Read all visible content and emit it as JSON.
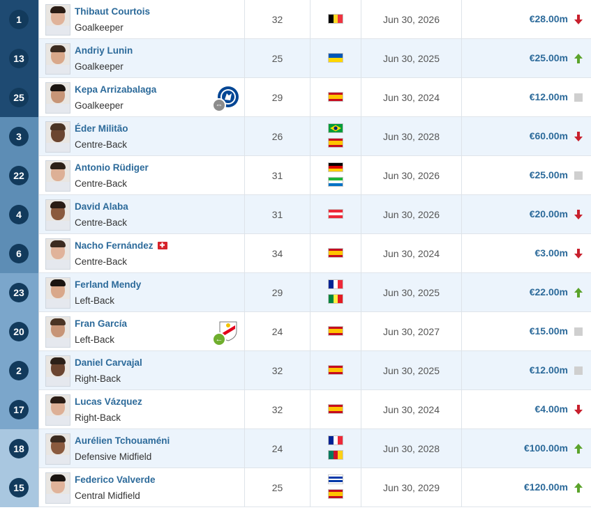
{
  "players": [
    {
      "number": "1",
      "name": "Thibaut Courtois",
      "position": "Goalkeeper",
      "age": "32",
      "flags": [
        "belgium-flag"
      ],
      "contract": "Jun 30, 2026",
      "value": "€28.00m",
      "trend": "down",
      "club_icon": null
    },
    {
      "number": "13",
      "name": "Andriy Lunin",
      "position": "Goalkeeper",
      "age": "25",
      "flags": [
        "ukraine-flag"
      ],
      "contract": "Jun 30, 2025",
      "value": "€25.00m",
      "trend": "up",
      "club_icon": null
    },
    {
      "number": "25",
      "name": "Kepa Arrizabalaga",
      "position": "Goalkeeper",
      "age": "29",
      "flags": [
        "spain-flag"
      ],
      "contract": "Jun 30, 2024",
      "value": "€12.00m",
      "trend": "none",
      "club_icon": "chelsea-crest-icon",
      "transfer_icon": "loan-swap-icon"
    },
    {
      "number": "3",
      "name": "Éder Militão",
      "position": "Centre-Back",
      "age": "26",
      "flags": [
        "brazil-flag",
        "spain-flag"
      ],
      "contract": "Jun 30, 2028",
      "value": "€60.00m",
      "trend": "down",
      "club_icon": null
    },
    {
      "number": "22",
      "name": "Antonio Rüdiger",
      "position": "Centre-Back",
      "age": "31",
      "flags": [
        "germany-flag",
        "sierra-leone-flag"
      ],
      "contract": "Jun 30, 2026",
      "value": "€25.00m",
      "trend": "none",
      "club_icon": null
    },
    {
      "number": "4",
      "name": "David Alaba",
      "position": "Centre-Back",
      "age": "31",
      "flags": [
        "austria-flag"
      ],
      "contract": "Jun 30, 2026",
      "value": "€20.00m",
      "trend": "down",
      "club_icon": null
    },
    {
      "number": "6",
      "name": "Nacho Fernández",
      "position": "Centre-Back",
      "age": "34",
      "flags": [
        "spain-flag"
      ],
      "contract": "Jun 30, 2024",
      "value": "€3.00m",
      "trend": "down",
      "club_icon": null,
      "injury_badge": "injury-icon"
    },
    {
      "number": "23",
      "name": "Ferland Mendy",
      "position": "Left-Back",
      "age": "29",
      "flags": [
        "france-flag",
        "senegal-flag"
      ],
      "contract": "Jun 30, 2025",
      "value": "€22.00m",
      "trend": "up",
      "club_icon": null
    },
    {
      "number": "20",
      "name": "Fran García",
      "position": "Left-Back",
      "age": "24",
      "flags": [
        "spain-flag"
      ],
      "contract": "Jun 30, 2027",
      "value": "€15.00m",
      "trend": "none",
      "club_icon": "rayo-vallecano-crest-icon",
      "transfer_icon": "return-arrow-icon"
    },
    {
      "number": "2",
      "name": "Daniel Carvajal",
      "position": "Right-Back",
      "age": "32",
      "flags": [
        "spain-flag"
      ],
      "contract": "Jun 30, 2025",
      "value": "€12.00m",
      "trend": "none",
      "club_icon": null
    },
    {
      "number": "17",
      "name": "Lucas Vázquez",
      "position": "Right-Back",
      "age": "32",
      "flags": [
        "spain-flag"
      ],
      "contract": "Jun 30, 2024",
      "value": "€4.00m",
      "trend": "down",
      "club_icon": null
    },
    {
      "number": "18",
      "name": "Aurélien Tchouaméni",
      "position": "Defensive Midfield",
      "age": "24",
      "flags": [
        "france-flag",
        "cameroon-flag"
      ],
      "contract": "Jun 30, 2028",
      "value": "€100.00m",
      "trend": "up",
      "club_icon": null
    },
    {
      "number": "15",
      "name": "Federico Valverde",
      "position": "Central Midfield",
      "age": "25",
      "flags": [
        "uruguay-flag",
        "spain-flag"
      ],
      "contract": "Jun 30, 2029",
      "value": "€120.00m",
      "trend": "up",
      "club_icon": null
    }
  ],
  "colors": {
    "link": "#2c6a9a",
    "number_badge": "#123a5c",
    "row_alt": "#ecf4fc",
    "trend_up": "#5ba32b",
    "trend_down": "#c8202d",
    "trend_none": "#cfcfcf"
  },
  "number_cell_colors": [
    "#0f3152",
    "#2f5f86",
    "#6a9bc4",
    "#a9c7e0"
  ]
}
